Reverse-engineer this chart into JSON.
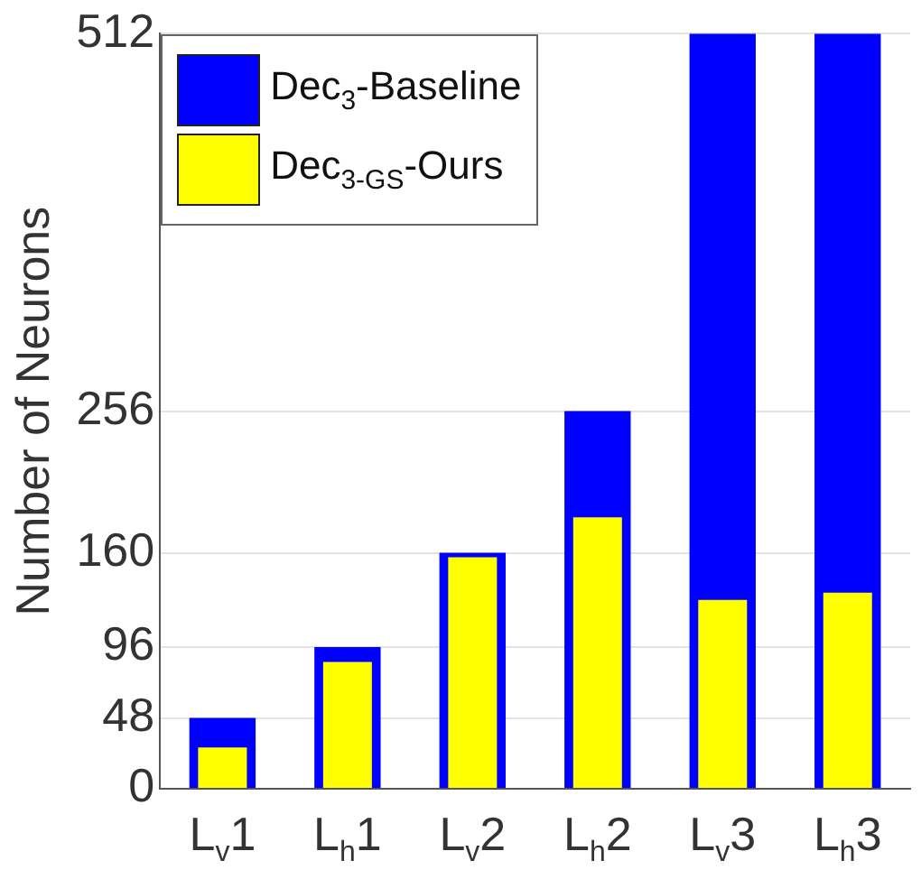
{
  "chart_data": {
    "type": "bar",
    "ylabel": "Number of Neurons",
    "categories": [
      "L$_{v}$1",
      "L$_{h}$1",
      "L$_{v}$2",
      "L$_{h}$2",
      "L$_{v}$3",
      "L$_{h}$3"
    ],
    "series": [
      {
        "name": "Dec$_{3}$-Baseline",
        "color": "#0000ff",
        "values": [
          48,
          96,
          160,
          256,
          512,
          512
        ]
      },
      {
        "name": "Dec$_{3-GS}$-Ours",
        "color": "#ffff00",
        "values": [
          28,
          86,
          157,
          184,
          128,
          133
        ]
      }
    ],
    "ylim": [
      0,
      512
    ],
    "yticks": [
      0,
      48,
      96,
      160,
      256,
      512
    ],
    "grid": "y",
    "legend": "top left"
  }
}
